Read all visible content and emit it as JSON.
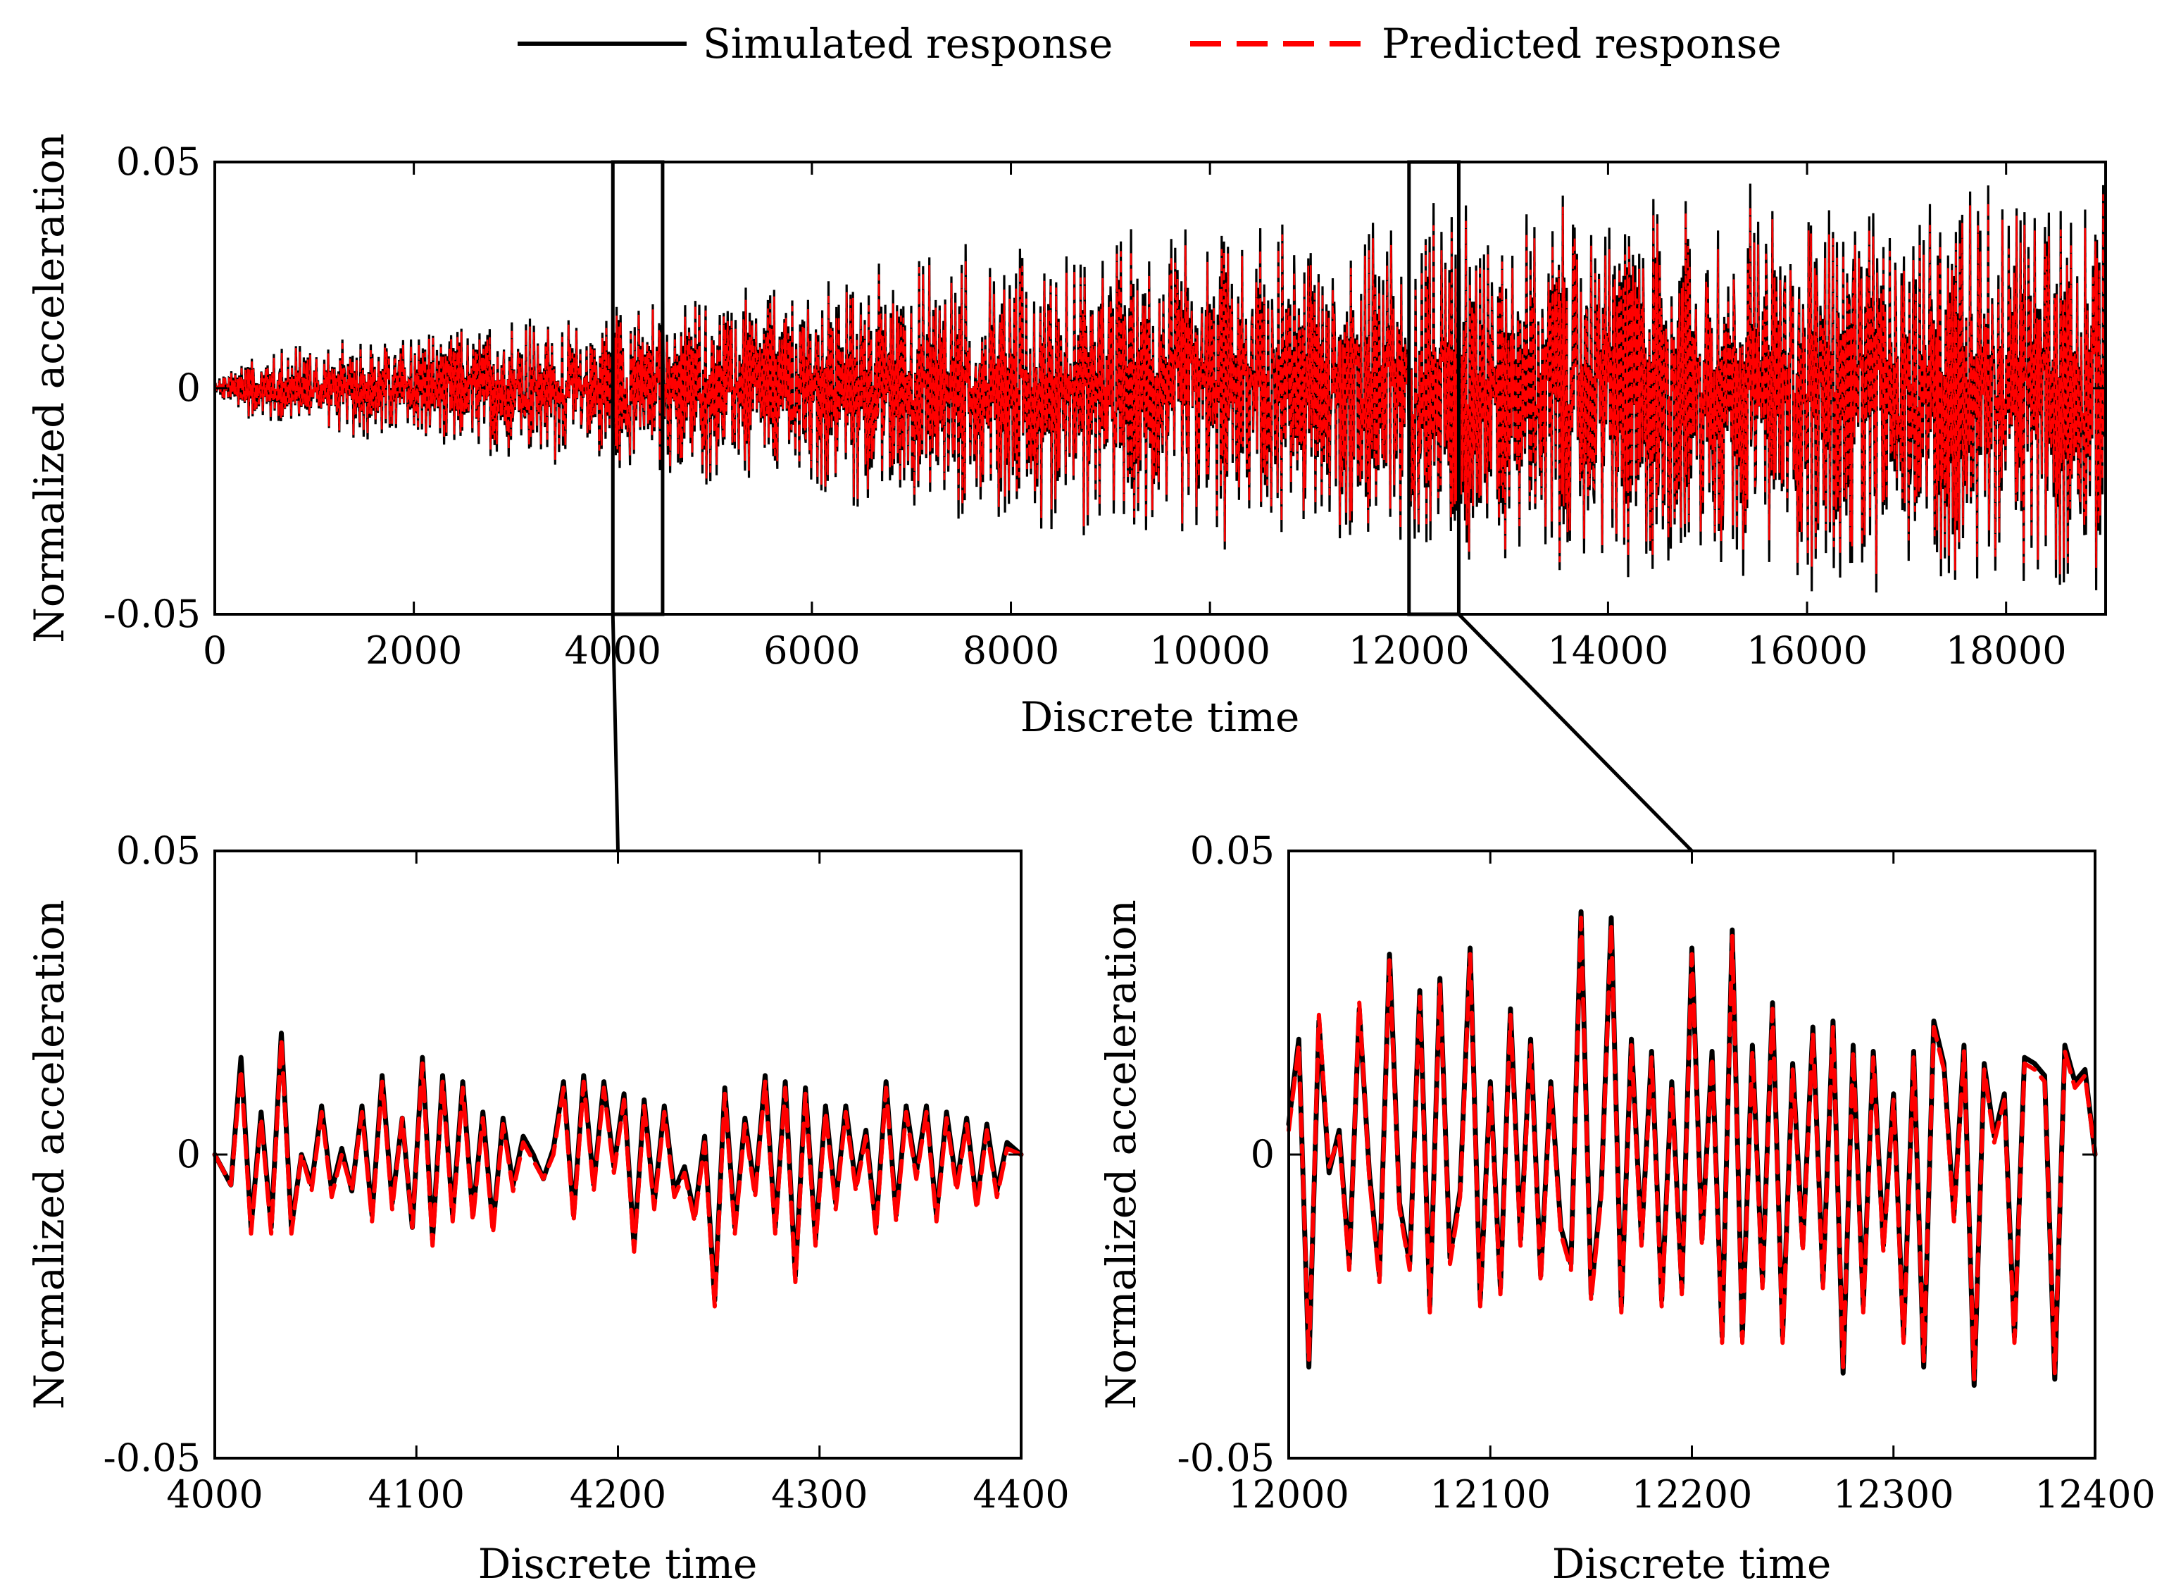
{
  "figure": {
    "colors": {
      "simulated": "#000000",
      "predicted": "#ff0000",
      "axes": "#000000",
      "background": "#ffffff"
    },
    "legend": {
      "placement": "top-center",
      "items": [
        {
          "label": "Simulated response",
          "color": "#000000",
          "style": "solid"
        },
        {
          "label": "Predicted response",
          "color": "#ff0000",
          "style": "dashed"
        }
      ]
    },
    "zoom_links": [
      {
        "from_box": 0,
        "to_panel": 1
      },
      {
        "from_box": 1,
        "to_panel": 2
      }
    ]
  },
  "chart_data": [
    {
      "type": "line",
      "title": "",
      "xlabel": "Discrete time",
      "ylabel": "Normalized acceleration",
      "xlim": [
        0,
        19000
      ],
      "ylim": [
        -0.05,
        0.05
      ],
      "xticks": [
        0,
        2000,
        4000,
        6000,
        8000,
        10000,
        12000,
        14000,
        16000,
        18000
      ],
      "xtick_labels": [
        "0",
        "2000",
        "4000",
        "6000",
        "8000",
        "10000",
        "12000",
        "14000",
        "16000",
        "18000"
      ],
      "yticks": [
        -0.05,
        0,
        0.05
      ],
      "ytick_labels": [
        "-0.05",
        "0",
        "0.05"
      ],
      "grid": false,
      "envelope": {
        "x": [
          0,
          500,
          2000,
          4000,
          6000,
          7000,
          9000,
          11000,
          12000,
          14000,
          16000,
          18000,
          19000
        ],
        "amplitude": [
          0.002,
          0.008,
          0.011,
          0.017,
          0.022,
          0.027,
          0.031,
          0.033,
          0.036,
          0.039,
          0.04,
          0.04,
          0.04
        ]
      },
      "zoom_boxes": [
        {
          "x_range": [
            4000,
            4500
          ],
          "y_range": [
            -0.05,
            0.05
          ]
        },
        {
          "x_range": [
            12000,
            12500
          ],
          "y_range": [
            -0.05,
            0.05
          ]
        }
      ],
      "series": [
        {
          "name": "Simulated response",
          "color": "#000000",
          "style": "solid"
        },
        {
          "name": "Predicted response",
          "color": "#ff0000",
          "style": "dashed"
        }
      ]
    },
    {
      "type": "line",
      "title": "",
      "xlabel": "Discrete time",
      "ylabel": "Normalized acceleration",
      "xlim": [
        4000,
        4400
      ],
      "ylim": [
        -0.05,
        0.05
      ],
      "xticks": [
        4000,
        4100,
        4200,
        4300,
        4400
      ],
      "xtick_labels": [
        "4000",
        "4100",
        "4200",
        "4300",
        "4400"
      ],
      "yticks": [
        -0.05,
        0,
        0.05
      ],
      "ytick_labels": [
        "-0.05",
        "0",
        "0.05"
      ],
      "grid": false,
      "series": [
        {
          "name": "Simulated response",
          "color": "#000000",
          "style": "solid",
          "x": [
            4000,
            4008,
            4013,
            4018,
            4023,
            4028,
            4033,
            4038,
            4043,
            4048,
            4053,
            4058,
            4063,
            4068,
            4073,
            4078,
            4083,
            4088,
            4093,
            4098,
            4103,
            4108,
            4113,
            4118,
            4123,
            4128,
            4133,
            4138,
            4143,
            4148,
            4153,
            4158,
            4163,
            4168,
            4173,
            4178,
            4183,
            4188,
            4193,
            4198,
            4203,
            4208,
            4213,
            4218,
            4223,
            4228,
            4233,
            4238,
            4243,
            4248,
            4253,
            4258,
            4263,
            4268,
            4273,
            4278,
            4283,
            4288,
            4293,
            4298,
            4303,
            4308,
            4313,
            4318,
            4323,
            4328,
            4333,
            4338,
            4343,
            4348,
            4353,
            4358,
            4363,
            4368,
            4373,
            4378,
            4383,
            4388,
            4393,
            4400
          ],
          "y": [
            0,
            -0.005,
            0.016,
            -0.012,
            0.007,
            -0.012,
            0.02,
            -0.012,
            0,
            -0.005,
            0.008,
            -0.006,
            0.001,
            -0.006,
            0.008,
            -0.01,
            0.013,
            -0.008,
            0.006,
            -0.012,
            0.016,
            -0.014,
            0.013,
            -0.01,
            0.012,
            -0.01,
            0.007,
            -0.012,
            0.006,
            -0.005,
            0.003,
            0,
            -0.004,
            0.001,
            0.012,
            -0.01,
            0.013,
            -0.005,
            0.012,
            -0.002,
            0.01,
            -0.015,
            0.009,
            -0.008,
            0.008,
            -0.006,
            -0.002,
            -0.01,
            0.003,
            -0.024,
            0.011,
            -0.012,
            0.006,
            -0.006,
            0.013,
            -0.012,
            0.012,
            -0.02,
            0.011,
            -0.014,
            0.008,
            -0.008,
            0.008,
            -0.005,
            0.004,
            -0.012,
            0.012,
            -0.01,
            0.008,
            -0.003,
            0.008,
            -0.01,
            0.007,
            -0.005,
            0.006,
            -0.008,
            0.005,
            -0.006,
            0.002,
            0
          ],
          "tick_y": null
        },
        {
          "name": "Predicted response",
          "color": "#ff0000",
          "style": "dashed",
          "x": [
            4000,
            4008,
            4013,
            4018,
            4023,
            4028,
            4033,
            4038,
            4043,
            4048,
            4053,
            4058,
            4063,
            4068,
            4073,
            4078,
            4083,
            4088,
            4093,
            4098,
            4103,
            4108,
            4113,
            4118,
            4123,
            4128,
            4133,
            4138,
            4143,
            4148,
            4153,
            4158,
            4163,
            4168,
            4173,
            4178,
            4183,
            4188,
            4193,
            4198,
            4203,
            4208,
            4213,
            4218,
            4223,
            4228,
            4233,
            4238,
            4243,
            4248,
            4253,
            4258,
            4263,
            4268,
            4273,
            4278,
            4283,
            4288,
            4293,
            4298,
            4303,
            4308,
            4313,
            4318,
            4323,
            4328,
            4333,
            4338,
            4343,
            4348,
            4353,
            4358,
            4363,
            4368,
            4373,
            4378,
            4383,
            4388,
            4393,
            4400
          ],
          "y": [
            0,
            -0.005,
            0.014,
            -0.013,
            0.006,
            -0.013,
            0.019,
            -0.013,
            0,
            -0.006,
            0.007,
            -0.007,
            0,
            -0.006,
            0.007,
            -0.011,
            0.012,
            -0.009,
            0.006,
            -0.012,
            0.015,
            -0.015,
            0.012,
            -0.011,
            0.011,
            -0.011,
            0.006,
            -0.013,
            0.005,
            -0.006,
            0.002,
            -0.001,
            -0.004,
            0,
            0.011,
            -0.011,
            0.012,
            -0.006,
            0.011,
            -0.003,
            0.009,
            -0.016,
            0.008,
            -0.009,
            0.007,
            -0.007,
            -0.003,
            -0.011,
            0.002,
            -0.025,
            0.01,
            -0.013,
            0.005,
            -0.007,
            0.012,
            -0.013,
            0.011,
            -0.021,
            0.01,
            -0.015,
            0.007,
            -0.009,
            0.007,
            -0.006,
            0.003,
            -0.013,
            0.011,
            -0.011,
            0.007,
            -0.004,
            0.007,
            -0.011,
            0.006,
            -0.006,
            0.005,
            -0.009,
            0.004,
            -0.007,
            0.001,
            0
          ]
        }
      ]
    },
    {
      "type": "line",
      "title": "",
      "xlabel": "Discrete time",
      "ylabel": "Normalized acceleration",
      "xlim": [
        12000,
        12400
      ],
      "ylim": [
        -0.05,
        0.05
      ],
      "xticks": [
        12000,
        12100,
        12200,
        12300,
        12400
      ],
      "xtick_labels": [
        "12000",
        "12100",
        "12200",
        "12300",
        "12400"
      ],
      "yticks": [
        -0.05,
        0,
        0.05
      ],
      "ytick_labels": [
        "-0.05",
        "0",
        "0.05"
      ],
      "grid": false,
      "series": [
        {
          "name": "Simulated response",
          "color": "#000000",
          "style": "solid",
          "x": [
            12000,
            12005,
            12010,
            12015,
            12020,
            12025,
            12030,
            12035,
            12040,
            12045,
            12050,
            12055,
            12060,
            12065,
            12070,
            12075,
            12080,
            12085,
            12090,
            12095,
            12100,
            12105,
            12110,
            12115,
            12120,
            12125,
            12130,
            12135,
            12140,
            12145,
            12150,
            12155,
            12160,
            12165,
            12170,
            12175,
            12180,
            12185,
            12190,
            12195,
            12200,
            12205,
            12210,
            12215,
            12220,
            12225,
            12230,
            12235,
            12240,
            12245,
            12250,
            12255,
            12260,
            12265,
            12270,
            12275,
            12280,
            12285,
            12290,
            12295,
            12300,
            12305,
            12310,
            12315,
            12320,
            12325,
            12330,
            12335,
            12340,
            12345,
            12350,
            12355,
            12360,
            12365,
            12370,
            12375,
            12380,
            12385,
            12390,
            12395,
            12400
          ],
          "y": [
            0.005,
            0.019,
            -0.035,
            0.022,
            -0.003,
            0.004,
            -0.018,
            0.024,
            -0.003,
            -0.02,
            0.033,
            -0.008,
            -0.018,
            0.027,
            -0.025,
            0.029,
            -0.017,
            -0.006,
            0.034,
            -0.024,
            0.012,
            -0.022,
            0.024,
            -0.014,
            0.019,
            -0.02,
            0.012,
            -0.012,
            -0.018,
            0.04,
            -0.023,
            -0.006,
            0.039,
            -0.025,
            0.019,
            -0.014,
            0.017,
            -0.024,
            0.012,
            -0.022,
            0.034,
            -0.014,
            0.017,
            -0.03,
            0.037,
            -0.03,
            0.018,
            -0.021,
            0.025,
            -0.03,
            0.015,
            -0.015,
            0.021,
            -0.021,
            0.022,
            -0.036,
            0.018,
            -0.025,
            0.017,
            -0.015,
            0.01,
            -0.03,
            0.017,
            -0.035,
            0.022,
            0.015,
            -0.01,
            0.018,
            -0.038,
            0.015,
            0.003,
            0.01,
            -0.03,
            0.016,
            0.015,
            0.013,
            -0.037,
            0.018,
            0.012,
            0.014,
            0
          ]
        },
        {
          "name": "Predicted response",
          "color": "#ff0000",
          "style": "dashed",
          "x": [
            12000,
            12005,
            12010,
            12015,
            12020,
            12025,
            12030,
            12035,
            12040,
            12045,
            12050,
            12055,
            12060,
            12065,
            12070,
            12075,
            12080,
            12085,
            12090,
            12095,
            12100,
            12105,
            12110,
            12115,
            12120,
            12125,
            12130,
            12135,
            12140,
            12145,
            12150,
            12155,
            12160,
            12165,
            12170,
            12175,
            12180,
            12185,
            12190,
            12195,
            12200,
            12205,
            12210,
            12215,
            12220,
            12225,
            12230,
            12235,
            12240,
            12245,
            12250,
            12255,
            12260,
            12265,
            12270,
            12275,
            12280,
            12285,
            12290,
            12295,
            12300,
            12305,
            12310,
            12315,
            12320,
            12325,
            12330,
            12335,
            12340,
            12345,
            12350,
            12355,
            12360,
            12365,
            12370,
            12375,
            12380,
            12385,
            12390,
            12395,
            12400
          ],
          "y": [
            0.004,
            0.018,
            -0.034,
            0.023,
            -0.002,
            0.003,
            -0.019,
            0.025,
            -0.004,
            -0.021,
            0.032,
            -0.009,
            -0.019,
            0.026,
            -0.026,
            0.028,
            -0.018,
            -0.007,
            0.033,
            -0.025,
            0.011,
            -0.023,
            0.023,
            -0.015,
            0.018,
            -0.021,
            0.011,
            -0.013,
            -0.019,
            0.039,
            -0.024,
            -0.007,
            0.038,
            -0.026,
            0.018,
            -0.015,
            0.016,
            -0.025,
            0.011,
            -0.023,
            0.033,
            -0.015,
            0.016,
            -0.031,
            0.036,
            -0.031,
            0.017,
            -0.022,
            0.024,
            -0.031,
            0.014,
            -0.016,
            0.02,
            -0.022,
            0.021,
            -0.035,
            0.017,
            -0.026,
            0.016,
            -0.016,
            0.009,
            -0.031,
            0.016,
            -0.034,
            0.021,
            0.014,
            -0.011,
            0.017,
            -0.037,
            0.014,
            0.002,
            0.009,
            -0.031,
            0.015,
            0.014,
            0.012,
            -0.036,
            0.017,
            0.011,
            0.013,
            0
          ]
        }
      ]
    }
  ]
}
